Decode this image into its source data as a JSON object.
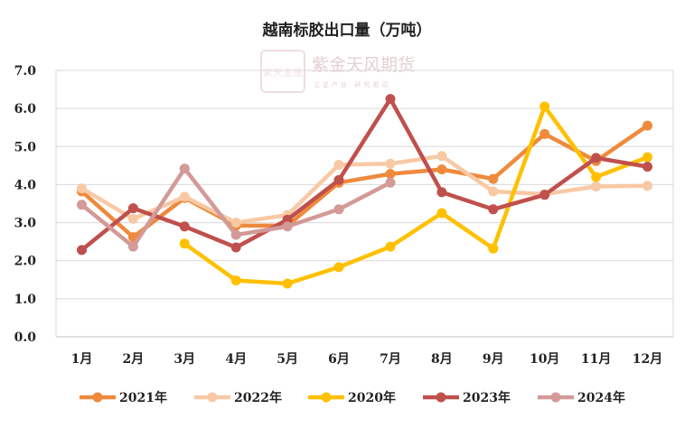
{
  "chart_data": {
    "type": "line",
    "title": "越南标胶出口量（万吨）",
    "categories": [
      "1月",
      "2月",
      "3月",
      "4月",
      "5月",
      "6月",
      "7月",
      "8月",
      "9月",
      "10月",
      "11月",
      "12月"
    ],
    "ylim": [
      0,
      7
    ],
    "yticks": [
      "0.0",
      "1.0",
      "2.0",
      "3.0",
      "4.0",
      "5.0",
      "6.0",
      "7.0"
    ],
    "grid": true,
    "legend_position": "bottom",
    "series": [
      {
        "name": "2021年",
        "color": "#ef8a3c",
        "values": [
          3.82,
          2.62,
          3.65,
          2.92,
          2.92,
          4.05,
          4.28,
          4.4,
          4.15,
          5.33,
          4.62,
          5.55
        ]
      },
      {
        "name": "2022年",
        "color": "#f8c9a4",
        "values": [
          3.9,
          3.1,
          3.68,
          3.0,
          3.2,
          4.52,
          4.55,
          4.75,
          3.82,
          3.75,
          3.95,
          3.97
        ]
      },
      {
        "name": "2020年",
        "color": "#ffc000",
        "values": [
          null,
          null,
          2.45,
          1.48,
          1.4,
          1.83,
          2.37,
          3.25,
          2.32,
          6.05,
          4.2,
          4.72
        ]
      },
      {
        "name": "2023年",
        "color": "#c0504d",
        "values": [
          2.28,
          3.38,
          2.9,
          2.35,
          3.08,
          4.12,
          6.25,
          3.8,
          3.35,
          3.73,
          4.7,
          4.47
        ]
      },
      {
        "name": "2024年",
        "color": "#d39a98",
        "values": [
          3.47,
          2.37,
          4.42,
          2.68,
          2.9,
          3.35,
          4.05,
          null,
          null,
          null,
          null,
          null
        ]
      }
    ]
  },
  "watermark": {
    "logo": "紫天金風",
    "text": "紫金天风期货",
    "sub": "立足产业 研究驱动"
  }
}
